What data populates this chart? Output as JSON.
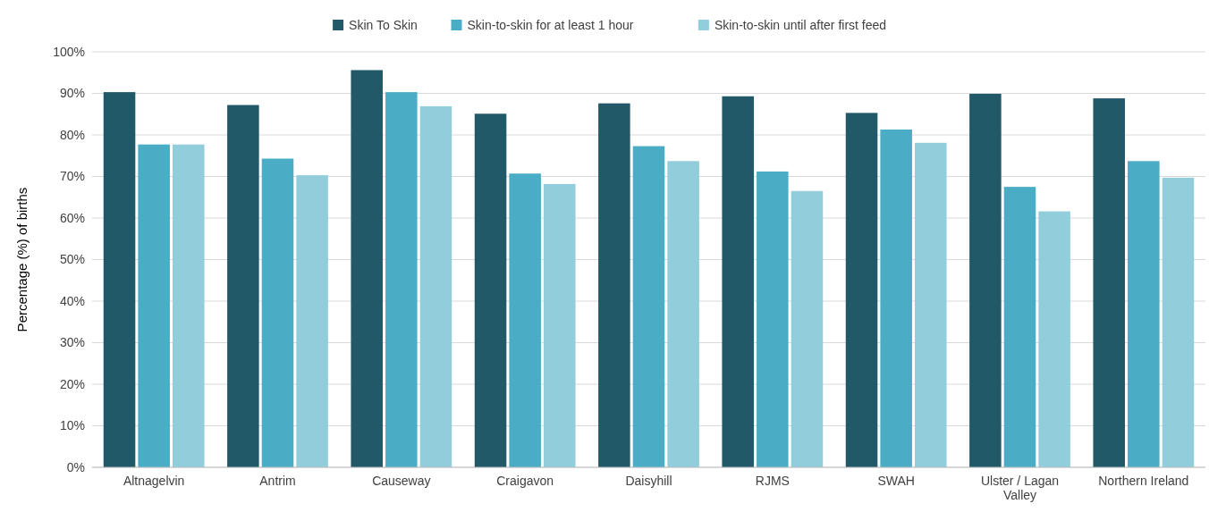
{
  "chart_data": {
    "type": "bar",
    "ylabel": "Percentage (%) of births",
    "categories": [
      "Altnagelvin",
      "Antrim",
      "Causeway",
      "Craigavon",
      "Daisyhill",
      "RJMS",
      "SWAH",
      "Ulster / Lagan Valley",
      "Northern Ireland"
    ],
    "series": [
      {
        "name": "Skin To Skin",
        "color": "#215968",
        "values": [
          90.3,
          87.2,
          95.6,
          85.1,
          87.6,
          89.3,
          85.3,
          89.9,
          88.8
        ]
      },
      {
        "name": "Skin-to-skin for at least 1 hour",
        "color": "#4bacc6",
        "values": [
          77.7,
          74.3,
          90.3,
          70.7,
          77.3,
          71.2,
          81.3,
          67.5,
          73.7
        ]
      },
      {
        "name": "Skin-to-skin until after first feed",
        "color": "#92cddc",
        "values": [
          77.7,
          70.3,
          86.9,
          68.2,
          73.7,
          66.5,
          78.1,
          61.6,
          69.7
        ]
      }
    ],
    "ylim": [
      0,
      100
    ],
    "yticks": [
      {
        "value": 0,
        "label": "0%"
      },
      {
        "value": 10,
        "label": "10%"
      },
      {
        "value": 20,
        "label": "20%"
      },
      {
        "value": 30,
        "label": "30%"
      },
      {
        "value": 40,
        "label": "40%"
      },
      {
        "value": 50,
        "label": "50%"
      },
      {
        "value": 60,
        "label": "60%"
      },
      {
        "value": 70,
        "label": "70%"
      },
      {
        "value": 80,
        "label": "80%"
      },
      {
        "value": 90,
        "label": "90%"
      },
      {
        "value": 100,
        "label": "100%"
      }
    ],
    "grid": "y",
    "legend": "top"
  }
}
